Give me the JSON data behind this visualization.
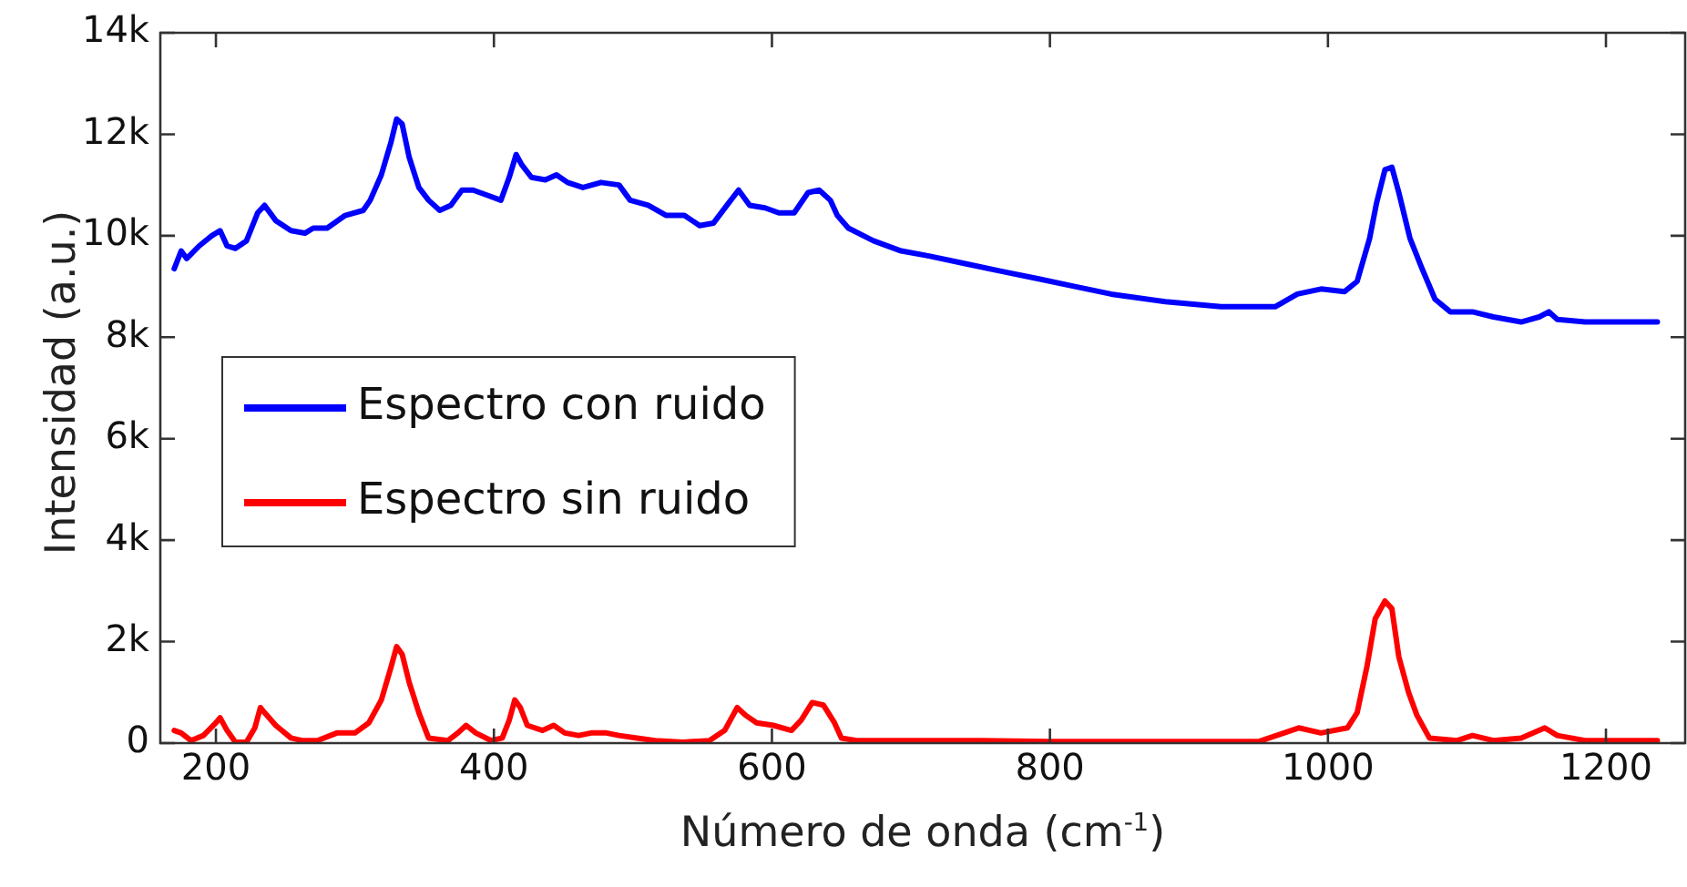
{
  "chart_data": {
    "type": "line",
    "xlabel": "Número de onda (cm$^{-1}$)",
    "ylabel": "Intensidad (a.u.)",
    "xlim": [
      160,
      1257
    ],
    "xticks": [
      200,
      400,
      600,
      800,
      1000,
      1200
    ],
    "ylim": [
      0,
      14000
    ],
    "yticks": [
      0,
      {
        "value": 2000,
        "label": "2k"
      },
      {
        "value": 4000,
        "label": "4k"
      },
      {
        "value": 6000,
        "label": "6k"
      },
      {
        "value": 8000,
        "label": "8k"
      },
      {
        "value": 10000,
        "label": "10k"
      },
      {
        "value": 12000,
        "label": "12k"
      },
      {
        "value": 14000,
        "label": "14k"
      }
    ],
    "grid": false,
    "legend": "left",
    "marker": "none",
    "line_style": "solid",
    "series": [
      {
        "name": "Espectro con ruido",
        "color": "#0000ff",
        "x": [
          170,
          175,
          179,
          188,
          197,
          203,
          208,
          214,
          222,
          230,
          235,
          243,
          254,
          264,
          270,
          280,
          293,
          306,
          311,
          319,
          326,
          330,
          334,
          339,
          346,
          353,
          361,
          369,
          377,
          385,
          395,
          405,
          411,
          416,
          420,
          427,
          437,
          445,
          453,
          464,
          477,
          490,
          498,
          511,
          524,
          537,
          548,
          558,
          569,
          576,
          584,
          595,
          605,
          616,
          626,
          634,
          642,
          647,
          655,
          673,
          693,
          713,
          739,
          765,
          792,
          818,
          844,
          883,
          923,
          962,
          978,
          995,
          1012,
          1021,
          1030,
          1035,
          1041,
          1046,
          1051,
          1059,
          1067,
          1077,
          1088,
          1104,
          1119,
          1139,
          1152,
          1159,
          1165,
          1185,
          1211,
          1237
        ],
        "values": [
          9350,
          9700,
          9550,
          9800,
          10000,
          10100,
          9800,
          9750,
          9900,
          10450,
          10600,
          10300,
          10100,
          10050,
          10150,
          10150,
          10400,
          10500,
          10700,
          11200,
          11850,
          12300,
          12200,
          11550,
          10950,
          10700,
          10500,
          10600,
          10900,
          10900,
          10800,
          10700,
          11150,
          11600,
          11400,
          11150,
          11100,
          11200,
          11050,
          10950,
          11050,
          11000,
          10700,
          10600,
          10400,
          10400,
          10200,
          10250,
          10650,
          10900,
          10600,
          10550,
          10450,
          10450,
          10850,
          10900,
          10700,
          10400,
          10150,
          9900,
          9700,
          9600,
          9450,
          9300,
          9150,
          9000,
          8850,
          8700,
          8600,
          8600,
          8850,
          8950,
          8900,
          9100,
          9950,
          10650,
          11300,
          11350,
          10850,
          9950,
          9400,
          8750,
          8500,
          8500,
          8400,
          8300,
          8400,
          8500,
          8350,
          8300,
          8300,
          8300
        ]
      },
      {
        "name": "Espectro sin ruido",
        "color": "#ff0000",
        "x": [
          170,
          175,
          182,
          191,
          200,
          203,
          208,
          214,
          222,
          228,
          232,
          235,
          243,
          254,
          262,
          273,
          287,
          300,
          310,
          319,
          326,
          330,
          334,
          339,
          346,
          353,
          367,
          374,
          380,
          387,
          398,
          406,
          411,
          415,
          419,
          424,
          435,
          443,
          451,
          461,
          470,
          481,
          490,
          503,
          516,
          536,
          555,
          566,
          575,
          581,
          589,
          601,
          614,
          621,
          629,
          637,
          645,
          650,
          661,
          700,
          750,
          800,
          850,
          900,
          950,
          979,
          995,
          1014,
          1021,
          1028,
          1034,
          1041,
          1046,
          1051,
          1058,
          1064,
          1073,
          1093,
          1104,
          1119,
          1139,
          1156,
          1165,
          1185,
          1237
        ],
        "values": [
          250,
          200,
          50,
          150,
          400,
          500,
          250,
          20,
          20,
          300,
          700,
          600,
          350,
          100,
          50,
          50,
          200,
          200,
          400,
          850,
          1500,
          1900,
          1750,
          1200,
          600,
          100,
          50,
          200,
          350,
          200,
          50,
          100,
          450,
          850,
          700,
          350,
          250,
          350,
          200,
          150,
          200,
          200,
          150,
          100,
          50,
          20,
          50,
          250,
          700,
          550,
          400,
          350,
          250,
          450,
          800,
          750,
          400,
          100,
          50,
          50,
          50,
          30,
          30,
          30,
          30,
          300,
          200,
          300,
          600,
          1500,
          2450,
          2800,
          2650,
          1700,
          1000,
          550,
          100,
          50,
          150,
          50,
          100,
          300,
          150,
          50,
          50
        ]
      }
    ]
  }
}
